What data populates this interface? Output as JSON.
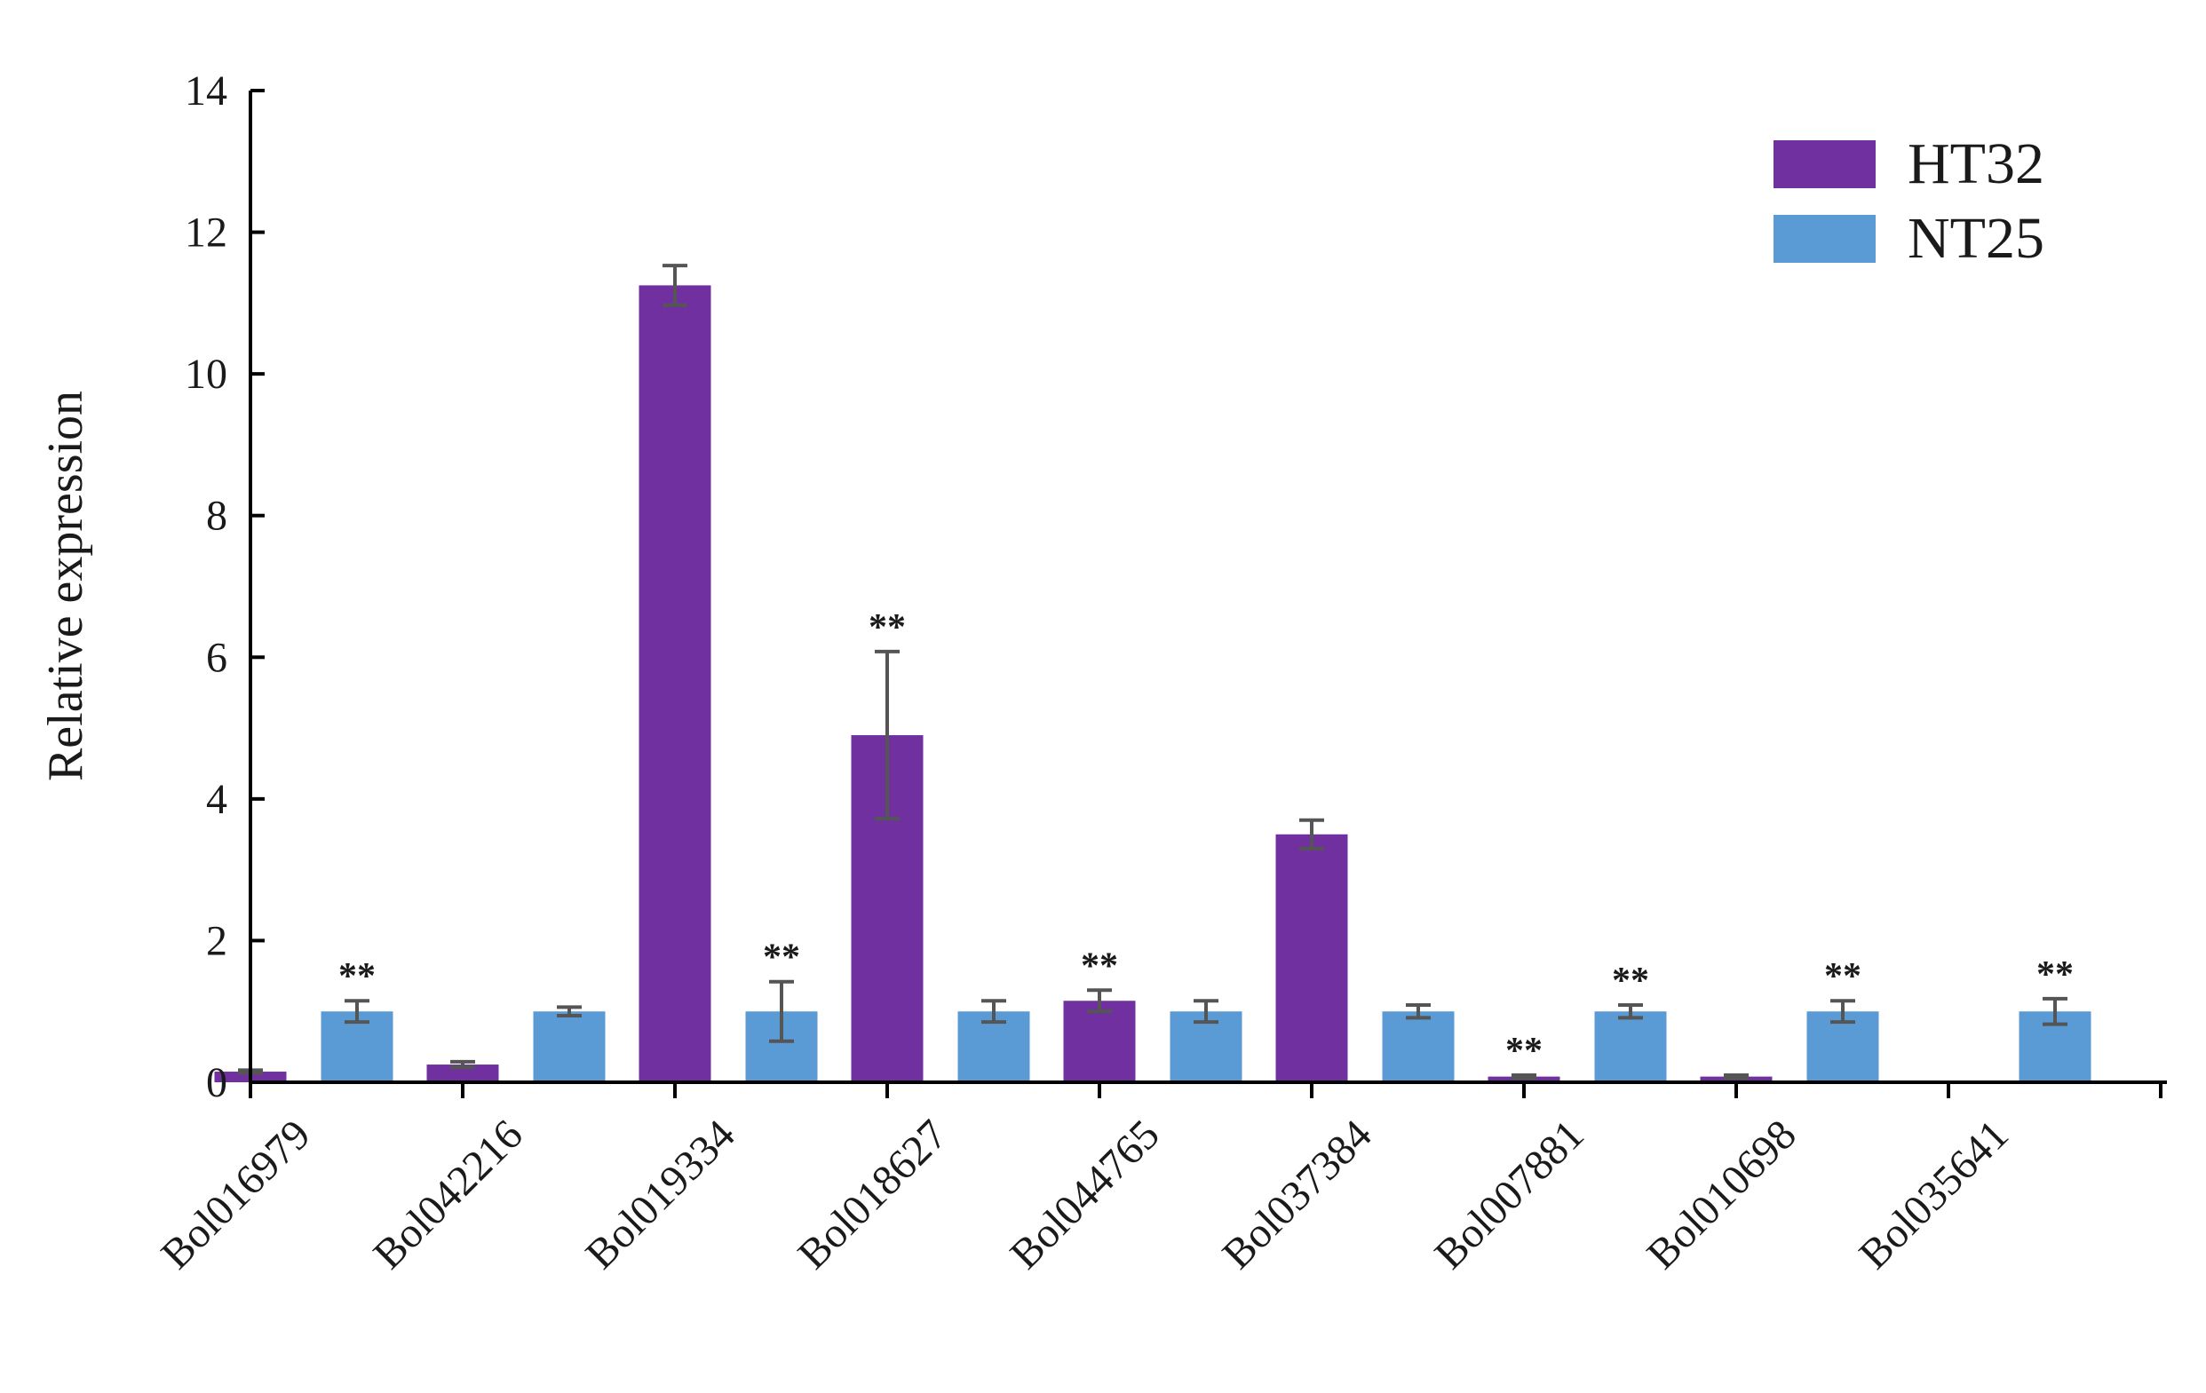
{
  "chart_data": {
    "type": "bar",
    "title": "",
    "xlabel": "",
    "ylabel": "Relative expression",
    "ylim": [
      0,
      14
    ],
    "yticks": [
      0,
      2,
      4,
      6,
      8,
      10,
      12,
      14
    ],
    "grid": false,
    "legend_position": "top-right",
    "categories": [
      "Bol016979",
      "Bol042216",
      "Bol019334",
      "Bol018627",
      "Bol044765",
      "Bol037384",
      "Bol007881",
      "Bol010698",
      "Bol035641"
    ],
    "series": [
      {
        "name": "HT32",
        "color": "#7030a0",
        "values": [
          0.15,
          0.25,
          11.25,
          4.9,
          1.15,
          3.5,
          0.08,
          0.08,
          null
        ],
        "errors": [
          0.02,
          0.04,
          0.28,
          1.18,
          0.15,
          0.2,
          0.02,
          0.02,
          null
        ]
      },
      {
        "name": "NT25",
        "color": "#5b9bd5",
        "values": [
          1.0,
          1.0,
          1.0,
          1.0,
          1.0,
          1.0,
          1.0,
          1.0,
          1.0
        ],
        "errors": [
          0.15,
          0.06,
          0.42,
          0.15,
          0.15,
          0.09,
          0.09,
          0.15,
          0.18
        ]
      }
    ],
    "annotations": [
      {
        "label": "**",
        "category": "Bol016979",
        "series": "NT25"
      },
      {
        "label": "**",
        "category": "Bol019334",
        "series": "NT25"
      },
      {
        "label": "**",
        "category": "Bol018627",
        "series": "HT32"
      },
      {
        "label": "**",
        "category": "Bol044765",
        "series": "HT32"
      },
      {
        "label": "**",
        "category": "Bol007881",
        "series": "HT32"
      },
      {
        "label": "**",
        "category": "Bol007881",
        "series": "NT25"
      },
      {
        "label": "**",
        "category": "Bol010698",
        "series": "NT25"
      },
      {
        "label": "**",
        "category": "Bol035641",
        "series": "NT25"
      }
    ]
  }
}
